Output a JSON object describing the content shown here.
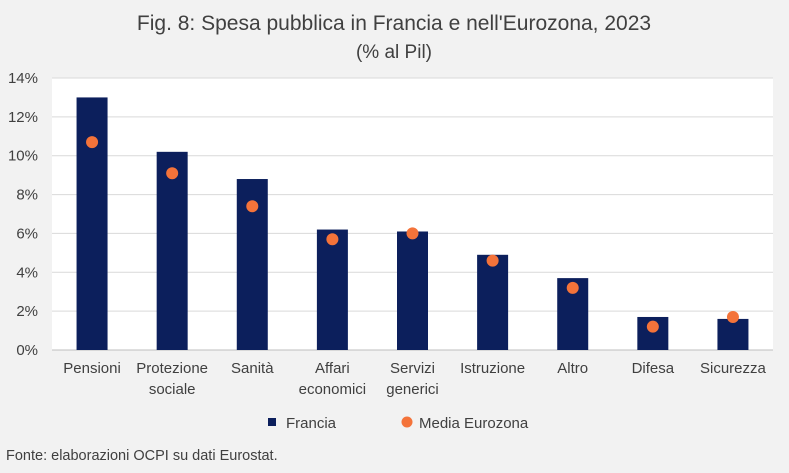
{
  "chart_data": {
    "type": "bar",
    "title": "Fig. 8: Spesa pubblica in Francia e nell'Eurozona, 2023",
    "subtitle": "(% al Pil)",
    "categories": [
      [
        "Pensioni"
      ],
      [
        "Protezione",
        "sociale"
      ],
      [
        "Sanità"
      ],
      [
        "Affari",
        "economici"
      ],
      [
        "Servizi",
        "generici"
      ],
      [
        "Istruzione"
      ],
      [
        "Altro"
      ],
      [
        "Difesa"
      ],
      [
        "Sicurezza"
      ]
    ],
    "series": [
      {
        "name": "Francia",
        "kind": "bar",
        "color": "#0c1f5c",
        "values": [
          13.0,
          10.2,
          8.8,
          6.2,
          6.1,
          4.9,
          3.7,
          1.7,
          1.6
        ]
      },
      {
        "name": "Media Eurozona",
        "kind": "dot",
        "color": "#f4733a",
        "values": [
          10.7,
          9.1,
          7.4,
          5.7,
          6.0,
          4.6,
          3.2,
          1.2,
          1.7
        ]
      }
    ],
    "ylim": [
      0,
      14
    ],
    "yticks": [
      "0%",
      "2%",
      "4%",
      "6%",
      "8%",
      "10%",
      "12%",
      "14%"
    ],
    "grid": true,
    "legend_position": "bottom",
    "source": "Fonte: elaborazioni OCPI su dati Eurostat."
  }
}
